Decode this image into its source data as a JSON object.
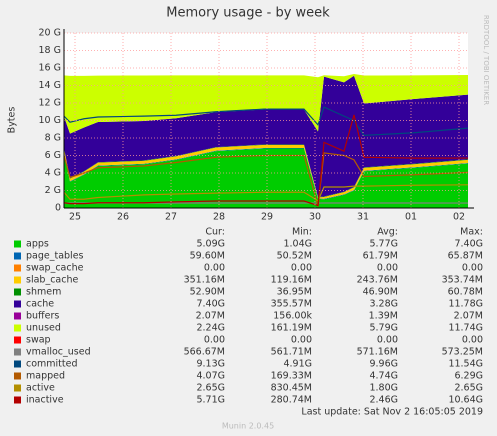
{
  "chart_data": {
    "type": "munin-area",
    "title": "Memory usage - by week",
    "y_label": "Bytes",
    "side_label": "RRDTOOL / TOBI OETIKER",
    "last_update": "Last update: Sat Nov  2 16:05:05 2019",
    "footer": "Munin 2.0.45",
    "grid": true,
    "xlim": [
      0,
      202
    ],
    "xticks": [
      {
        "value": 5.5,
        "label": "25"
      },
      {
        "value": 29.5,
        "label": "26"
      },
      {
        "value": 53.5,
        "label": "27"
      },
      {
        "value": 77.5,
        "label": "28"
      },
      {
        "value": 101.5,
        "label": "29"
      },
      {
        "value": 125.5,
        "label": "30"
      },
      {
        "value": 149.5,
        "label": "31"
      },
      {
        "value": 173.5,
        "label": "01"
      },
      {
        "value": 197.5,
        "label": "02"
      }
    ],
    "ylim": [
      0,
      20
    ],
    "yticks": [
      0,
      {
        "value": 2,
        "label": "2 G"
      },
      {
        "value": 4,
        "label": "4 G"
      },
      {
        "value": 6,
        "label": "6 G"
      },
      {
        "value": 8,
        "label": "8 G"
      },
      {
        "value": 10,
        "label": "10 G"
      },
      {
        "value": 12,
        "label": "12 G"
      },
      {
        "value": 14,
        "label": "14 G"
      },
      {
        "value": 16,
        "label": "16 G"
      },
      {
        "value": 18,
        "label": "18 G"
      },
      {
        "value": 20,
        "label": "20 G"
      }
    ],
    "x": [
      0,
      3,
      10,
      17,
      40,
      56,
      76,
      100,
      120,
      127,
      130,
      140,
      145,
      150,
      175,
      202
    ],
    "stat_headers": [
      "Cur:",
      "Min:",
      "Avg:",
      "Max:"
    ],
    "series": [
      {
        "name": "apps",
        "color": "#00cc00",
        "draw": "stack",
        "values": [
          6.4,
          3.0,
          3.8,
          4.8,
          5.0,
          5.5,
          6.5,
          6.8,
          6.8,
          1.04,
          1.0,
          1.5,
          2.0,
          4.2,
          4.6,
          5.09
        ],
        "stats": [
          "5.09G",
          "1.04G",
          "5.77G",
          "7.40G"
        ]
      },
      {
        "name": "page_tables",
        "color": "#0066b3",
        "draw": "stack",
        "values": [
          0.06,
          0.06,
          0.06,
          0.06,
          0.06,
          0.06,
          0.06,
          0.06,
          0.06,
          0.05,
          0.06,
          0.06,
          0.06,
          0.06,
          0.06,
          0.0596
        ],
        "stats": [
          "59.60M",
          "50.52M",
          "61.79M",
          "65.87M"
        ]
      },
      {
        "name": "swap_cache",
        "color": "#ff8000",
        "draw": "stack",
        "values": [
          0,
          0,
          0,
          0,
          0,
          0,
          0,
          0,
          0,
          0,
          0,
          0,
          0,
          0,
          0,
          0
        ],
        "stats": [
          "0.00",
          "0.00",
          "0.00",
          "0.00"
        ]
      },
      {
        "name": "slab_cache",
        "color": "#ffcc00",
        "draw": "stack",
        "values": [
          0.35,
          0.3,
          0.3,
          0.32,
          0.33,
          0.34,
          0.35,
          0.35,
          0.35,
          0.12,
          0.2,
          0.25,
          0.3,
          0.33,
          0.34,
          0.351
        ],
        "stats": [
          "351.16M",
          "119.16M",
          "243.76M",
          "353.74M"
        ]
      },
      {
        "name": "shmem",
        "color": "#008f00",
        "draw": "stack",
        "values": [
          0.05,
          0.04,
          0.04,
          0.05,
          0.05,
          0.05,
          0.05,
          0.05,
          0.05,
          0.037,
          0.05,
          0.05,
          0.05,
          0.05,
          0.05,
          0.0529
        ],
        "stats": [
          "52.90M",
          "36.95M",
          "46.90M",
          "60.78M"
        ]
      },
      {
        "name": "cache",
        "color": "#330099",
        "draw": "stack",
        "values": [
          3.6,
          5.1,
          5.0,
          4.6,
          4.5,
          4.3,
          4.0,
          4.0,
          4.0,
          7.5,
          13.7,
          12.5,
          12.7,
          7.3,
          7.4,
          7.4
        ],
        "stats": [
          "7.40G",
          "355.57M",
          "3.28G",
          "11.78G"
        ]
      },
      {
        "name": "buffers",
        "color": "#990099",
        "draw": "stack",
        "values": [
          0.002,
          0.002,
          0.002,
          0.002,
          0.002,
          0.002,
          0.002,
          0.002,
          0.002,
          0.0002,
          0.002,
          0.002,
          0.002,
          0.002,
          0.002,
          0.002
        ],
        "stats": [
          "2.07M",
          "156.00k",
          "1.39M",
          "2.07M"
        ]
      },
      {
        "name": "unused",
        "color": "#ccff00",
        "draw": "stack",
        "values": [
          4.7,
          6.6,
          5.9,
          5.3,
          5.2,
          4.9,
          4.2,
          3.9,
          3.9,
          6.2,
          0.16,
          0.7,
          0.2,
          3.2,
          2.7,
          2.24
        ],
        "stats": [
          "2.24G",
          "161.19M",
          "5.79G",
          "11.74G"
        ]
      },
      {
        "name": "swap",
        "color": "#ff0000",
        "draw": "stack",
        "values": [
          0,
          0,
          0,
          0,
          0,
          0,
          0,
          0,
          0,
          0,
          0,
          0,
          0,
          0,
          0,
          0
        ],
        "stats": [
          "0.00",
          "0.00",
          "0.00",
          "0.00"
        ]
      },
      {
        "name": "vmalloc_used",
        "color": "#808080",
        "draw": "line",
        "values": [
          0.57,
          0.57,
          0.57,
          0.57,
          0.57,
          0.57,
          0.57,
          0.57,
          0.57,
          0.562,
          0.57,
          0.57,
          0.57,
          0.57,
          0.57,
          0.567
        ],
        "stats": [
          "566.67M",
          "561.71M",
          "571.16M",
          "573.25M"
        ]
      },
      {
        "name": "committed",
        "color": "#00487d",
        "draw": "line",
        "values": [
          10.5,
          9.8,
          10.2,
          10.4,
          10.5,
          10.6,
          11.0,
          11.3,
          11.3,
          9.5,
          11.54,
          10.5,
          10.0,
          8.3,
          8.6,
          9.13
        ],
        "stats": [
          "9.13G",
          "4.91G",
          "9.96G",
          "11.54G"
        ]
      },
      {
        "name": "mapped",
        "color": "#b35a00",
        "draw": "line",
        "values": [
          6.0,
          3.5,
          4.0,
          4.6,
          4.8,
          5.2,
          5.8,
          6.0,
          6.0,
          0.17,
          6.29,
          6.0,
          5.5,
          3.6,
          3.8,
          4.07
        ],
        "stats": [
          "4.07G",
          "169.33M",
          "4.74G",
          "6.29G"
        ]
      },
      {
        "name": "active",
        "color": "#b38f00",
        "draw": "line",
        "values": [
          1.8,
          1.0,
          1.0,
          1.2,
          1.5,
          1.6,
          1.7,
          1.8,
          1.8,
          0.83,
          2.4,
          2.4,
          2.5,
          2.5,
          2.6,
          2.65
        ],
        "stats": [
          "2.65G",
          "830.45M",
          "1.80G",
          "2.65G"
        ]
      },
      {
        "name": "inactive",
        "color": "#b30000",
        "draw": "line",
        "values": [
          0.6,
          0.5,
          0.5,
          0.6,
          0.6,
          0.7,
          0.8,
          0.8,
          0.8,
          0.28,
          7.5,
          6.5,
          10.64,
          5.8,
          5.7,
          5.71
        ],
        "stats": [
          "5.71G",
          "280.74M",
          "2.46G",
          "10.64G"
        ]
      }
    ]
  }
}
